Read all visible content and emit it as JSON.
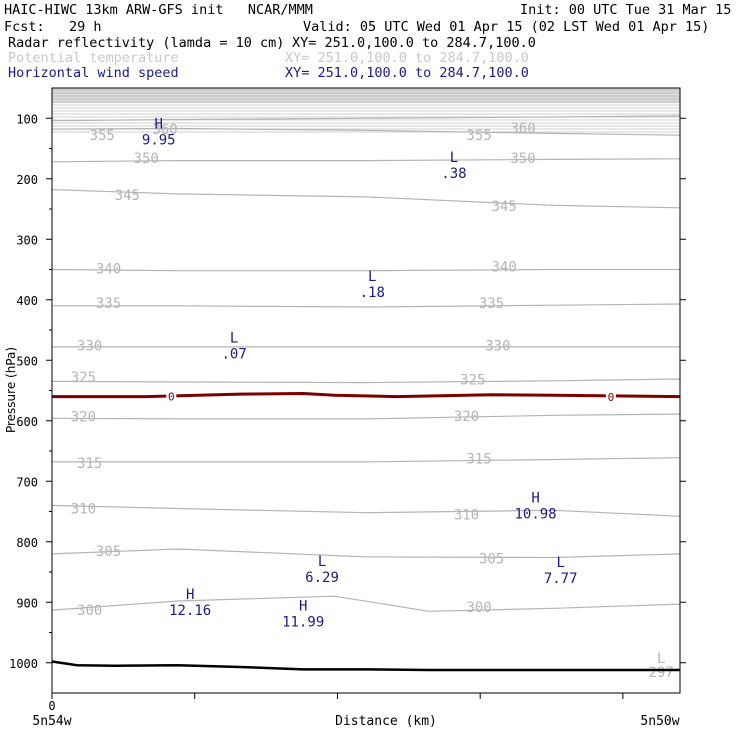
{
  "header": {
    "model_title": "HAIC-HIWC 13km ARW-GFS init   NCAR/MMM",
    "init": "Init: 00 UTC Tue 31 Mar 15",
    "fcst": "Fcst:   29 h",
    "valid": "Valid: 05 UTC Wed 01 Apr 15 (02 LST Wed 01 Apr 15)",
    "fields": [
      {
        "label": "Radar reflectivity (lamda = 10 cm)",
        "xy": "XY= 251.0,100.0 to 284.7,100.0",
        "color": "#000000"
      },
      {
        "label": "Potential temperature",
        "xy": "XY= 251.0,100.0 to 284.7,100.0",
        "color": "#c8c8c8"
      },
      {
        "label": "Horizontal wind speed",
        "xy": "XY= 251.0,100.0 to 284.7,100.0",
        "color": "#1a1a8c"
      }
    ]
  },
  "chart_data": {
    "type": "line",
    "xlabel": "Distance (km)",
    "ylabel": "Pressure (hPa)",
    "ylim": [
      1050,
      50
    ],
    "y_ticks": [
      100,
      200,
      300,
      400,
      500,
      600,
      700,
      800,
      900,
      1000
    ],
    "x_ticks": [
      0
    ],
    "x_range": [
      0,
      100
    ],
    "left_label": "5n54w",
    "right_label": "5n50w",
    "theta_contours": [
      {
        "value": 360,
        "points": [
          [
            0,
            104
          ],
          [
            20,
            102
          ],
          [
            50,
            100
          ],
          [
            80,
            98
          ],
          [
            100,
            96
          ]
        ],
        "labels": [
          {
            "x": 18,
            "p": 118
          },
          {
            "x": 75,
            "p": 116
          }
        ]
      },
      {
        "value": 355,
        "points": [
          [
            0,
            118
          ],
          [
            20,
            117
          ],
          [
            50,
            120
          ],
          [
            80,
            125
          ],
          [
            100,
            128
          ]
        ],
        "labels": [
          {
            "x": 8,
            "p": 128
          },
          {
            "x": 68,
            "p": 128
          }
        ]
      },
      {
        "value": 350,
        "points": [
          [
            0,
            172
          ],
          [
            20,
            170
          ],
          [
            50,
            170
          ],
          [
            80,
            168
          ],
          [
            100,
            167
          ]
        ],
        "labels": [
          {
            "x": 15,
            "p": 166
          },
          {
            "x": 75,
            "p": 166
          }
        ]
      },
      {
        "value": 345,
        "points": [
          [
            0,
            218
          ],
          [
            20,
            225
          ],
          [
            50,
            230
          ],
          [
            80,
            244
          ],
          [
            100,
            248
          ]
        ],
        "labels": [
          {
            "x": 12,
            "p": 227
          },
          {
            "x": 72,
            "p": 245
          }
        ]
      },
      {
        "value": 340,
        "points": [
          [
            0,
            350
          ],
          [
            20,
            352
          ],
          [
            50,
            352
          ],
          [
            80,
            350
          ],
          [
            100,
            350
          ]
        ],
        "labels": [
          {
            "x": 9,
            "p": 348
          },
          {
            "x": 72,
            "p": 345
          }
        ]
      },
      {
        "value": 335,
        "points": [
          [
            0,
            410
          ],
          [
            20,
            410
          ],
          [
            50,
            412
          ],
          [
            80,
            409
          ],
          [
            100,
            407
          ]
        ],
        "labels": [
          {
            "x": 9,
            "p": 405
          },
          {
            "x": 70,
            "p": 405
          }
        ]
      },
      {
        "value": 330,
        "points": [
          [
            0,
            478
          ],
          [
            20,
            478
          ],
          [
            50,
            478
          ],
          [
            80,
            478
          ],
          [
            100,
            478
          ]
        ],
        "labels": [
          {
            "x": 6,
            "p": 476
          },
          {
            "x": 71,
            "p": 476
          }
        ]
      },
      {
        "value": 325,
        "points": [
          [
            0,
            535
          ],
          [
            20,
            536
          ],
          [
            50,
            537
          ],
          [
            80,
            534
          ],
          [
            100,
            531
          ]
        ],
        "labels": [
          {
            "x": 5,
            "p": 528
          },
          {
            "x": 67,
            "p": 532
          }
        ]
      },
      {
        "value": 320,
        "points": [
          [
            0,
            596
          ],
          [
            20,
            597
          ],
          [
            50,
            597
          ],
          [
            80,
            591
          ],
          [
            100,
            589
          ]
        ],
        "labels": [
          {
            "x": 5,
            "p": 593
          },
          {
            "x": 66,
            "p": 592
          }
        ]
      },
      {
        "value": 315,
        "points": [
          [
            0,
            668
          ],
          [
            20,
            668
          ],
          [
            50,
            668
          ],
          [
            80,
            664
          ],
          [
            100,
            661
          ]
        ],
        "labels": [
          {
            "x": 6,
            "p": 670
          },
          {
            "x": 68,
            "p": 662
          }
        ]
      },
      {
        "value": 310,
        "points": [
          [
            0,
            740
          ],
          [
            20,
            745
          ],
          [
            50,
            752
          ],
          [
            80,
            748
          ],
          [
            100,
            758
          ]
        ],
        "labels": [
          {
            "x": 5,
            "p": 745
          },
          {
            "x": 66,
            "p": 755
          }
        ]
      },
      {
        "value": 305,
        "points": [
          [
            0,
            820
          ],
          [
            20,
            812
          ],
          [
            50,
            825
          ],
          [
            80,
            826
          ],
          [
            100,
            820
          ]
        ],
        "labels": [
          {
            "x": 9,
            "p": 815
          },
          {
            "x": 70,
            "p": 828
          }
        ]
      },
      {
        "value": 300,
        "points": [
          [
            0,
            913
          ],
          [
            20,
            898
          ],
          [
            45,
            890
          ],
          [
            60,
            915
          ],
          [
            80,
            910
          ],
          [
            100,
            903
          ]
        ],
        "labels": [
          {
            "x": 6,
            "p": 913
          },
          {
            "x": 68,
            "p": 908
          }
        ]
      },
      {
        "value": 297,
        "points": [],
        "labels": [
          {
            "x": 97,
            "p": 1015
          }
        ]
      }
    ],
    "reflectivity_zero_line": {
      "value": 0,
      "points": [
        [
          0,
          560
        ],
        [
          15,
          560
        ],
        [
          30,
          556
        ],
        [
          40,
          555
        ],
        [
          45,
          558
        ],
        [
          55,
          560
        ],
        [
          70,
          557
        ],
        [
          80,
          558
        ],
        [
          100,
          560
        ]
      ],
      "labels": [
        {
          "x": 19,
          "p": 560
        },
        {
          "x": 89,
          "p": 561
        }
      ]
    },
    "wind_extrema": [
      {
        "type": "H",
        "value": "9.95",
        "x": 17,
        "p": 117
      },
      {
        "type": "L",
        "value": ".38",
        "x": 64,
        "p": 172
      },
      {
        "type": "L",
        "value": ".18",
        "x": 51,
        "p": 369
      },
      {
        "type": "L",
        "value": ".07",
        "x": 29,
        "p": 471
      },
      {
        "type": "H",
        "value": "10.98",
        "x": 77,
        "p": 735
      },
      {
        "type": "L",
        "value": "6.29",
        "x": 43,
        "p": 840
      },
      {
        "type": "L",
        "value": "7.77",
        "x": 81,
        "p": 842
      },
      {
        "type": "H",
        "value": "12.16",
        "x": 22,
        "p": 895
      },
      {
        "type": "H",
        "value": "11.99",
        "x": 40,
        "p": 914
      },
      {
        "type": "L",
        "value": "",
        "x": 97,
        "p": 1000
      }
    ],
    "terrain": [
      [
        0,
        998
      ],
      [
        4,
        1004
      ],
      [
        10,
        1005
      ],
      [
        20,
        1004
      ],
      [
        30,
        1007
      ],
      [
        40,
        1011
      ],
      [
        50,
        1011
      ],
      [
        60,
        1012
      ],
      [
        80,
        1012
      ],
      [
        100,
        1012
      ]
    ],
    "top_shading_above": 75,
    "colors": {
      "theta": "#b4b4b4",
      "wind": "#1a1a8c",
      "reflectivity_zero": "#7a0000",
      "terrain": "#000000",
      "shading": "#dcdcdc"
    }
  }
}
